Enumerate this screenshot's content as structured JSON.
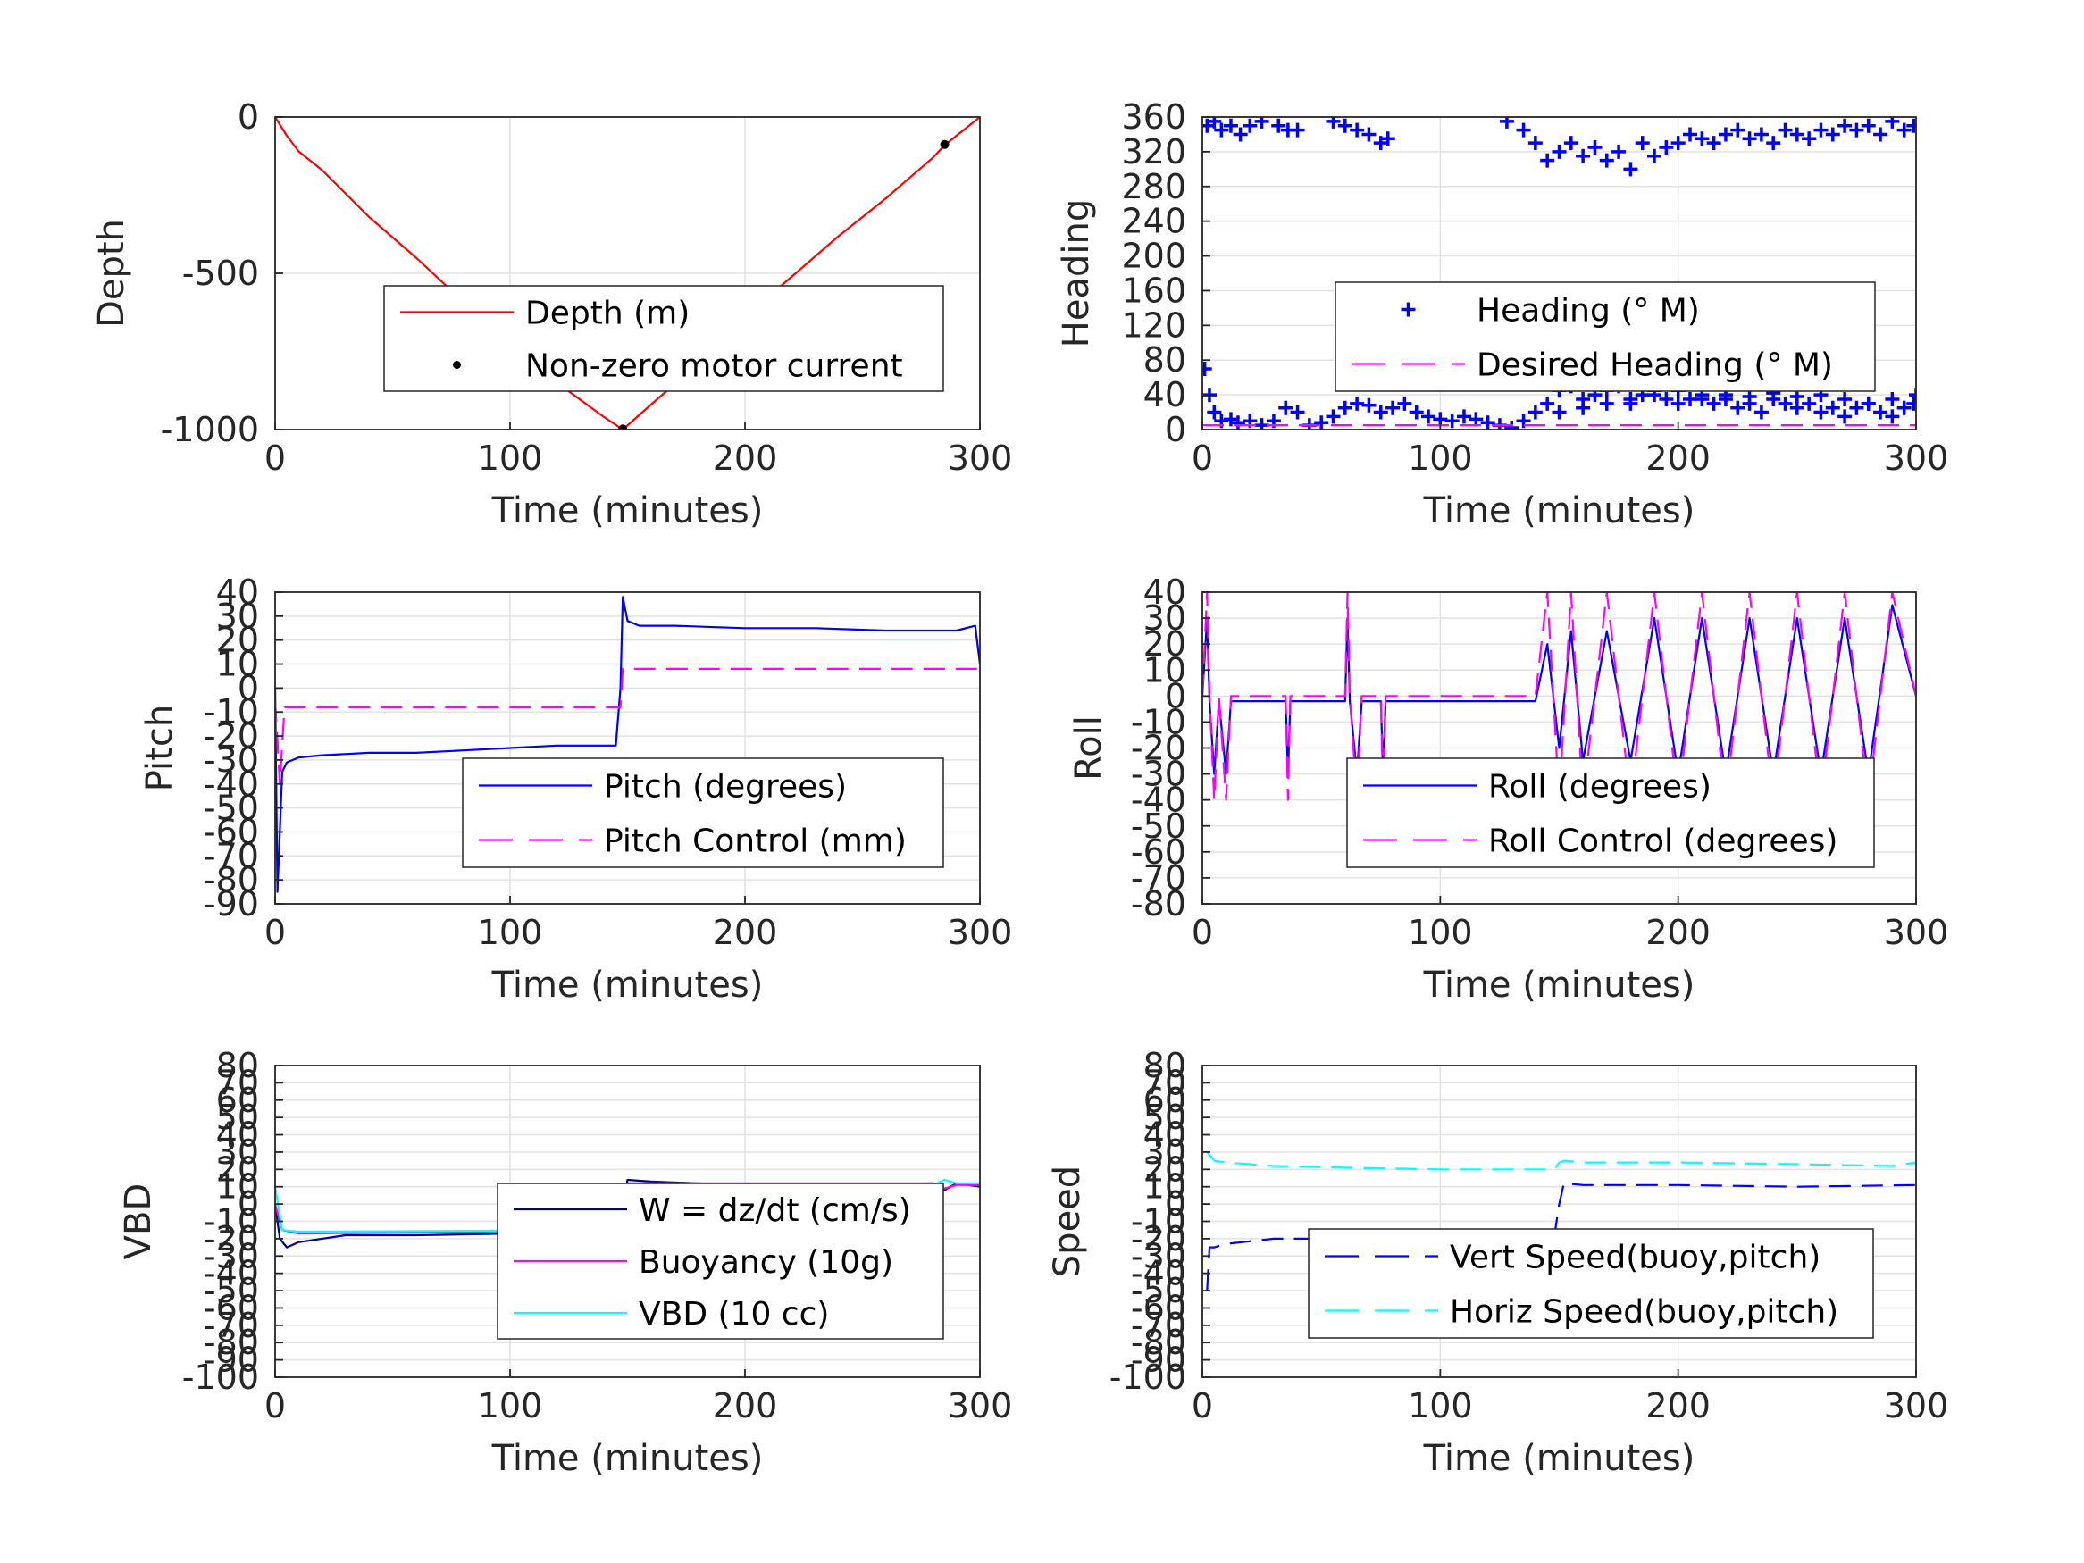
{
  "chart_data": [
    {
      "type": "line",
      "xlabel": "Time (minutes)",
      "ylabel": "Depth",
      "xlim": [
        0,
        300
      ],
      "ylim": [
        -1000,
        0
      ],
      "xticks": [
        0,
        100,
        200,
        300
      ],
      "yticks": [
        0,
        -500,
        -1000
      ],
      "grid": true,
      "legend_position": "center-right",
      "series": [
        {
          "name": "Depth (m)",
          "color": "#ff0000",
          "style": "solid",
          "marker": "none",
          "x": [
            0,
            5,
            10,
            20,
            40,
            60,
            80,
            100,
            120,
            140,
            148,
            160,
            180,
            200,
            220,
            240,
            260,
            280,
            285,
            300
          ],
          "y": [
            0,
            -60,
            -110,
            -170,
            -320,
            -450,
            -590,
            -720,
            -850,
            -960,
            -1000,
            -920,
            -790,
            -640,
            -510,
            -380,
            -260,
            -130,
            -90,
            0
          ]
        },
        {
          "name": "Non-zero motor current",
          "color": "#000000",
          "style": "none",
          "marker": "dot",
          "x": [
            148,
            285
          ],
          "y": [
            -998,
            -88
          ]
        }
      ]
    },
    {
      "type": "scatter",
      "xlabel": "Time (minutes)",
      "ylabel": "Heading",
      "xlim": [
        0,
        300
      ],
      "ylim": [
        0,
        360
      ],
      "xticks": [
        0,
        100,
        200,
        300
      ],
      "yticks": [
        0,
        40,
        80,
        120,
        160,
        200,
        240,
        280,
        320,
        360
      ],
      "grid": true,
      "legend_position": "center-right",
      "series": [
        {
          "name": "Heading (° M)",
          "color": "#0000ff",
          "style": "none",
          "marker": "plus",
          "x": [
            1,
            3,
            5,
            8,
            12,
            15,
            20,
            25,
            30,
            35,
            40,
            45,
            50,
            55,
            60,
            65,
            70,
            75,
            80,
            85,
            90,
            95,
            100,
            105,
            110,
            115,
            120,
            125,
            130,
            135,
            140,
            145,
            150,
            155,
            160,
            165,
            170,
            175,
            180,
            185,
            190,
            195,
            200,
            205,
            210,
            215,
            220,
            225,
            230,
            235,
            240,
            245,
            250,
            255,
            260,
            265,
            270,
            275,
            280,
            285,
            290,
            295,
            299,
            2,
            5,
            8,
            12,
            16,
            20,
            25,
            32,
            36,
            40,
            55,
            60,
            65,
            70,
            75,
            78,
            128,
            135,
            140,
            145,
            150,
            155,
            160,
            165,
            170,
            175,
            180,
            185,
            190,
            195,
            200,
            205,
            210,
            215,
            220,
            225,
            230,
            235,
            240,
            245,
            250,
            255,
            260,
            265,
            270,
            275,
            280,
            285,
            290,
            295,
            299,
            150,
            160,
            170,
            180,
            190,
            200,
            210,
            220,
            230,
            240,
            250,
            260,
            270,
            280,
            290,
            300
          ],
          "y": [
            70,
            40,
            20,
            10,
            12,
            8,
            10,
            5,
            10,
            25,
            20,
            5,
            8,
            15,
            25,
            30,
            28,
            20,
            25,
            30,
            20,
            15,
            12,
            10,
            15,
            12,
            8,
            5,
            2,
            10,
            20,
            30,
            45,
            50,
            35,
            40,
            45,
            50,
            30,
            40,
            45,
            35,
            30,
            35,
            40,
            30,
            35,
            25,
            30,
            20,
            35,
            30,
            25,
            30,
            20,
            25,
            15,
            25,
            30,
            20,
            15,
            25,
            30,
            350,
            355,
            345,
            350,
            340,
            350,
            355,
            350,
            345,
            345,
            355,
            350,
            345,
            340,
            330,
            335,
            355,
            345,
            330,
            310,
            320,
            330,
            315,
            325,
            310,
            320,
            300,
            330,
            315,
            325,
            330,
            340,
            335,
            330,
            340,
            345,
            335,
            340,
            330,
            345,
            340,
            335,
            345,
            340,
            350,
            345,
            350,
            340,
            355,
            345,
            350,
            20,
            25,
            30,
            35,
            40,
            45,
            35,
            40,
            38,
            42,
            38,
            40,
            35,
            30,
            35,
            40
          ]
        },
        {
          "name": "Desired Heading (° M)",
          "color": "#ff00ff",
          "style": "dashed",
          "marker": "none",
          "x": [
            0,
            300
          ],
          "y": [
            5,
            5
          ]
        }
      ]
    },
    {
      "type": "line",
      "xlabel": "Time (minutes)",
      "ylabel": "Pitch",
      "xlim": [
        0,
        300
      ],
      "ylim": [
        -90,
        40
      ],
      "xticks": [
        0,
        100,
        200,
        300
      ],
      "yticks": [
        40,
        30,
        20,
        10,
        0,
        -10,
        -20,
        -30,
        -40,
        -50,
        -60,
        -70,
        -80,
        -90
      ],
      "grid": true,
      "legend_position": "center-right",
      "series": [
        {
          "name": "Pitch (degrees)",
          "color": "#0000ff",
          "style": "solid",
          "marker": "none",
          "x": [
            0,
            1,
            2,
            3,
            5,
            10,
            20,
            40,
            60,
            80,
            100,
            120,
            140,
            145,
            147,
            148,
            150,
            155,
            170,
            200,
            230,
            260,
            290,
            298,
            300
          ],
          "y": [
            0,
            -85,
            -60,
            -35,
            -31,
            -29,
            -28,
            -27,
            -27,
            -26,
            -25,
            -24,
            -24,
            -24,
            0,
            38,
            28,
            26,
            26,
            25,
            25,
            24,
            24,
            26,
            10
          ]
        },
        {
          "name": "Pitch Control (mm)",
          "color": "#ff00ff",
          "style": "dashed",
          "marker": "none",
          "x": [
            0,
            2,
            4,
            146,
            147,
            148,
            300
          ],
          "y": [
            -5,
            -40,
            -8,
            -8,
            -8,
            8,
            8
          ]
        }
      ]
    },
    {
      "type": "line",
      "xlabel": "Time (minutes)",
      "ylabel": "Roll",
      "xlim": [
        0,
        300
      ],
      "ylim": [
        -80,
        40
      ],
      "xticks": [
        0,
        100,
        200,
        300
      ],
      "yticks": [
        40,
        30,
        20,
        10,
        0,
        -10,
        -20,
        -30,
        -40,
        -50,
        -60,
        -70,
        -80
      ],
      "grid": true,
      "legend_position": "center-right",
      "series": [
        {
          "name": "Roll (degrees)",
          "color": "#0000ff",
          "style": "solid",
          "marker": "none",
          "x": [
            0,
            2,
            3,
            5,
            7,
            10,
            12,
            35,
            36,
            37,
            60,
            61,
            62,
            65,
            67,
            75,
            76,
            77,
            140,
            145,
            150,
            155,
            160,
            170,
            180,
            190,
            200,
            210,
            220,
            230,
            240,
            250,
            260,
            270,
            280,
            290,
            300
          ],
          "y": [
            0,
            30,
            -2,
            -30,
            -2,
            -30,
            -2,
            -2,
            -30,
            -2,
            -2,
            30,
            -2,
            -30,
            -2,
            -2,
            -30,
            -2,
            -2,
            20,
            -20,
            25,
            -25,
            25,
            -25,
            30,
            -30,
            30,
            -30,
            30,
            -30,
            30,
            -30,
            30,
            -30,
            35,
            0
          ]
        },
        {
          "name": "Roll Control (degrees)",
          "color": "#ff00ff",
          "style": "dashed",
          "marker": "none",
          "x": [
            0,
            2,
            3,
            5,
            7,
            10,
            12,
            35,
            36,
            37,
            60,
            61,
            62,
            65,
            67,
            75,
            76,
            77,
            140,
            145,
            150,
            155,
            160,
            170,
            180,
            190,
            200,
            210,
            220,
            230,
            240,
            250,
            260,
            270,
            280,
            290,
            300
          ],
          "y": [
            0,
            40,
            0,
            -40,
            0,
            -40,
            0,
            0,
            -40,
            0,
            0,
            40,
            0,
            -40,
            0,
            0,
            -40,
            0,
            0,
            40,
            -40,
            40,
            -40,
            40,
            -40,
            40,
            -40,
            40,
            -40,
            40,
            -40,
            40,
            -40,
            40,
            -40,
            40,
            0
          ]
        }
      ]
    },
    {
      "type": "line",
      "xlabel": "Time (minutes)",
      "ylabel": "VBD",
      "xlim": [
        0,
        300
      ],
      "ylim": [
        -100,
        80
      ],
      "xticks": [
        0,
        100,
        200,
        300
      ],
      "yticks": [
        80,
        70,
        60,
        50,
        40,
        30,
        20,
        10,
        0,
        -10,
        -20,
        -30,
        -40,
        -50,
        -60,
        -70,
        -80,
        -90,
        -100
      ],
      "grid": true,
      "legend_position": "center-right",
      "series": [
        {
          "name": "W = dz/dt (cm/s)",
          "color": "#00008b",
          "style": "solid",
          "marker": "none",
          "x": [
            0,
            2,
            5,
            10,
            30,
            60,
            100,
            147,
            148,
            150,
            160,
            200,
            250,
            280,
            285,
            290,
            300
          ],
          "y": [
            0,
            -20,
            -25,
            -22,
            -18,
            -18,
            -17,
            -16,
            0,
            14,
            13,
            11,
            11,
            12,
            8,
            12,
            10
          ]
        },
        {
          "name": "Buoyancy (10g)",
          "color": "#ff00ff",
          "style": "solid",
          "marker": "none",
          "x": [
            0,
            3,
            10,
            147,
            150,
            280,
            285,
            290,
            300
          ],
          "y": [
            0,
            -15,
            -17,
            -15,
            12,
            12,
            9,
            11,
            11
          ]
        },
        {
          "name": "VBD (10 cc)",
          "color": "#00ffff",
          "style": "solid",
          "marker": "none",
          "x": [
            0,
            3,
            10,
            147,
            150,
            280,
            285,
            290,
            300
          ],
          "y": [
            10,
            -15,
            -16,
            -15,
            11,
            11,
            14,
            12,
            12
          ]
        }
      ]
    },
    {
      "type": "line",
      "xlabel": "Time (minutes)",
      "ylabel": "Speed",
      "xlim": [
        0,
        300
      ],
      "ylim": [
        -100,
        80
      ],
      "xticks": [
        0,
        100,
        200,
        300
      ],
      "yticks": [
        80,
        70,
        60,
        50,
        40,
        30,
        20,
        10,
        0,
        -10,
        -20,
        -30,
        -40,
        -50,
        -60,
        -70,
        -80,
        -90,
        -100
      ],
      "grid": true,
      "legend_position": "center-right",
      "series": [
        {
          "name": "Vert Speed(buoy,pitch)",
          "color": "#0000ff",
          "style": "dashed",
          "marker": "none",
          "x": [
            2,
            3,
            5,
            10,
            30,
            60,
            100,
            148,
            150,
            152,
            160,
            200,
            250,
            300
          ],
          "y": [
            -50,
            -25,
            -25,
            -23,
            -20,
            -20,
            -19,
            -18,
            0,
            12,
            11,
            11,
            10,
            11
          ]
        },
        {
          "name": "Horiz Speed(buoy,pitch)",
          "color": "#00ffff",
          "style": "dashed",
          "marker": "none",
          "x": [
            2,
            5,
            10,
            30,
            60,
            100,
            148,
            150,
            152,
            160,
            200,
            250,
            290,
            300
          ],
          "y": [
            30,
            25,
            24,
            22,
            21,
            20,
            20,
            24,
            25,
            24,
            24,
            23,
            22,
            24
          ]
        }
      ]
    }
  ]
}
